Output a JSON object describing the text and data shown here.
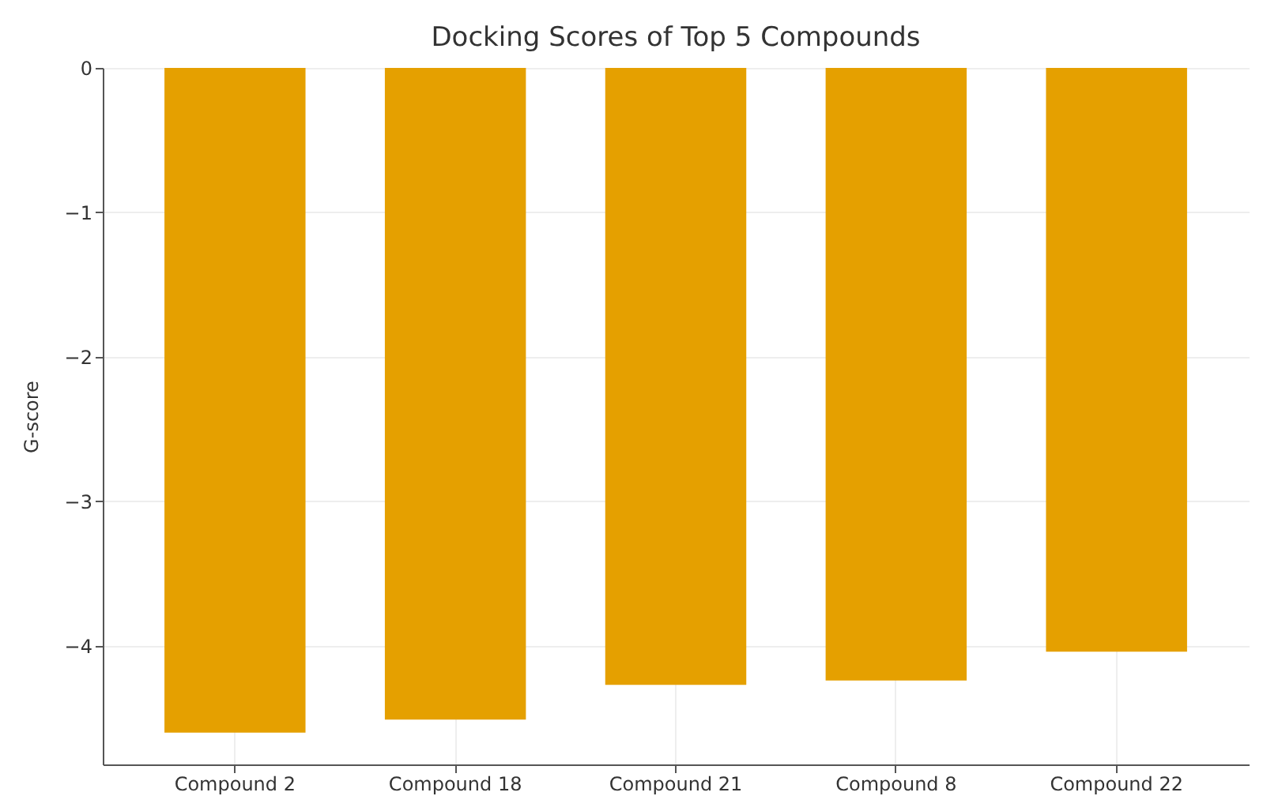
{
  "chart_data": {
    "type": "bar",
    "title": "Docking Scores of Top 5 Compounds",
    "ylabel": "G-score",
    "categories": [
      "Compound 2",
      "Compound 18",
      "Compound 21",
      "Compound 8",
      "Compound 22"
    ],
    "values": [
      -4.6,
      -4.51,
      -4.27,
      -4.24,
      -4.04
    ],
    "color": "#e5a000",
    "ylim": [
      -4.82,
      0
    ],
    "yticks": [
      -4,
      -3,
      -2,
      -1,
      0
    ],
    "grid": true
  }
}
